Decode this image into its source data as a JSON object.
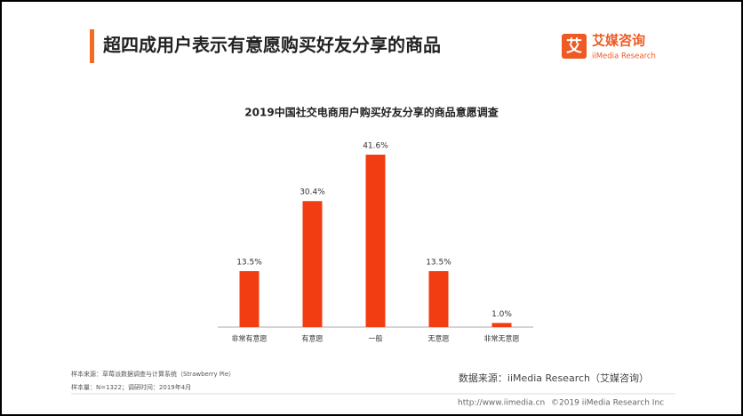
{
  "header": {
    "title": "超四成用户表示有意愿购买好友分享的商品",
    "logo_mark": "艾",
    "logo_name": "艾媒咨询",
    "logo_sub": "iiMedia Research"
  },
  "chart_data": {
    "type": "bar",
    "title": "2019中国社交电商用户购买好友分享的商品意愿调查",
    "categories": [
      "非常有意愿",
      "有意愿",
      "一般",
      "无意愿",
      "非常无意愿"
    ],
    "values": [
      13.5,
      30.4,
      41.6,
      13.5,
      1.0
    ],
    "value_labels": [
      "13.5%",
      "30.4%",
      "41.6%",
      "13.5%",
      "1.0%"
    ],
    "color": "#f23d12"
  },
  "footer": {
    "sample_source": "样本来源：草莓派数据调查与计算系统（Strawberry Pie）",
    "sample_size": "样本量：N=1322；调研时间：2019年4月",
    "data_source": "数据来源：iiMedia Research（艾媒咨询）",
    "url": "http://www.iimedia.cn",
    "copyright": "©2019  iiMedia Research  Inc"
  }
}
